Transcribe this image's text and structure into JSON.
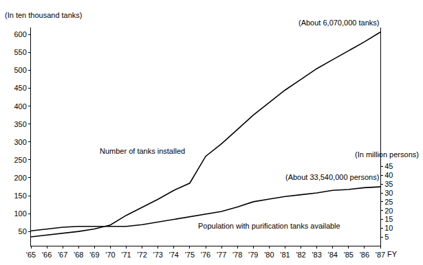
{
  "chart_data": {
    "type": "line",
    "categories": [
      "'65",
      "'66",
      "'67",
      "'68",
      "'69",
      "'70",
      "'71",
      "'72",
      "'73",
      "'74",
      "'75",
      "'76",
      "'77",
      "'78",
      "'79",
      "'80",
      "'81",
      "'82",
      "'83",
      "'84",
      "'85",
      "'86",
      "'87"
    ],
    "xlabel": "FY",
    "ylabel": "(In ten thousand tanks)",
    "y2label": "(In million persons)",
    "series": [
      {
        "name": "Number of tanks installed",
        "color": "#000000",
        "values": [
          35,
          40,
          45,
          50,
          57,
          68,
          95,
          118,
          140,
          165,
          185,
          260,
          295,
          335,
          375,
          410,
          445,
          475,
          505,
          530,
          555,
          580,
          607
        ]
      },
      {
        "name": "Population with purification tanks available",
        "color": "#000000",
        "axis": "y2",
        "values": [
          8.5,
          9.5,
          10.5,
          11,
          11,
          11,
          11,
          12,
          13.5,
          15,
          16.5,
          18,
          19.5,
          22,
          25,
          26.5,
          28,
          29,
          30,
          31.5,
          32,
          33,
          33.5
        ]
      }
    ],
    "annotations": [
      "(About 6,070,000 tanks)",
      "(About 33,540,000 persons)"
    ],
    "ylim": [
      10,
      620
    ],
    "yticks": [
      50,
      100,
      150,
      200,
      250,
      300,
      350,
      400,
      450,
      500,
      550,
      600
    ],
    "y2lim": [
      0,
      124
    ],
    "y2ticks": [
      5,
      10,
      15,
      20,
      25,
      30,
      35,
      40,
      45
    ],
    "grid": false
  }
}
